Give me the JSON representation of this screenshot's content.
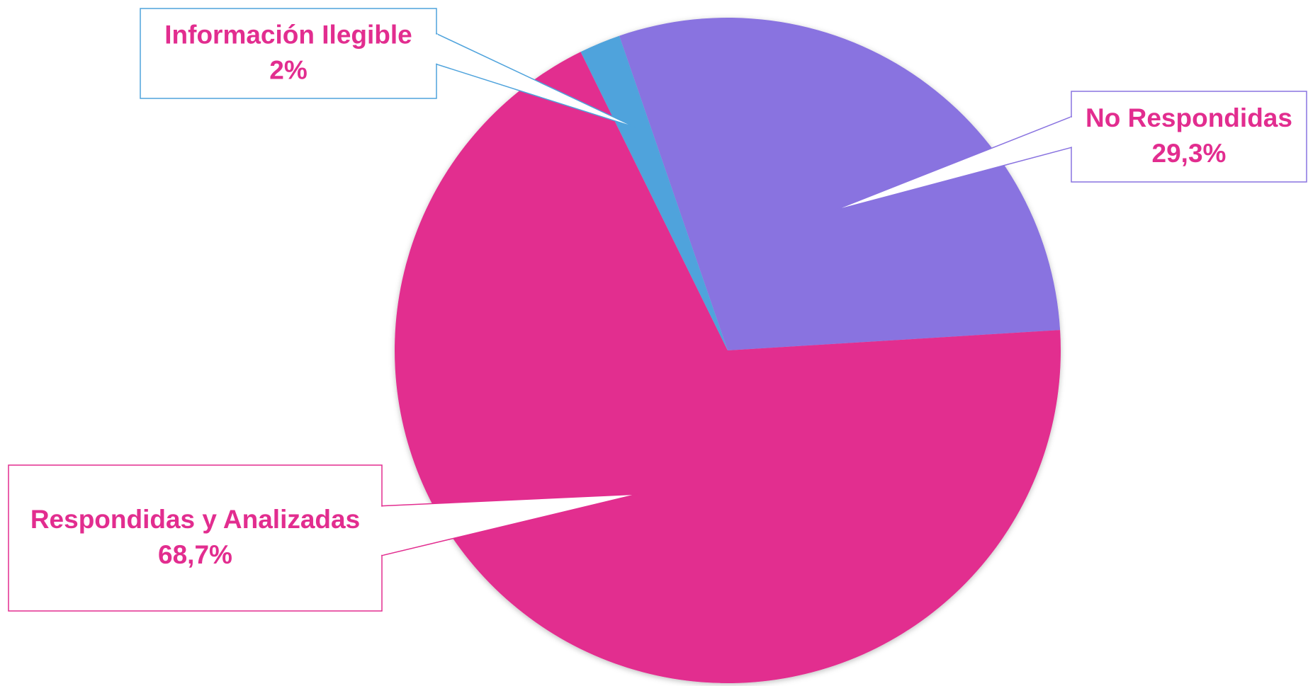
{
  "chart_data": {
    "type": "pie",
    "categories": [
      "No Respondidas",
      "Respondidas y Analizadas",
      "Información Ilegible"
    ],
    "values": [
      29.3,
      68.7,
      2
    ],
    "value_labels": [
      "29,3%",
      "68,7%",
      "2%"
    ],
    "colors": [
      "#8973e0",
      "#e22d8f",
      "#4fa3dc"
    ]
  }
}
